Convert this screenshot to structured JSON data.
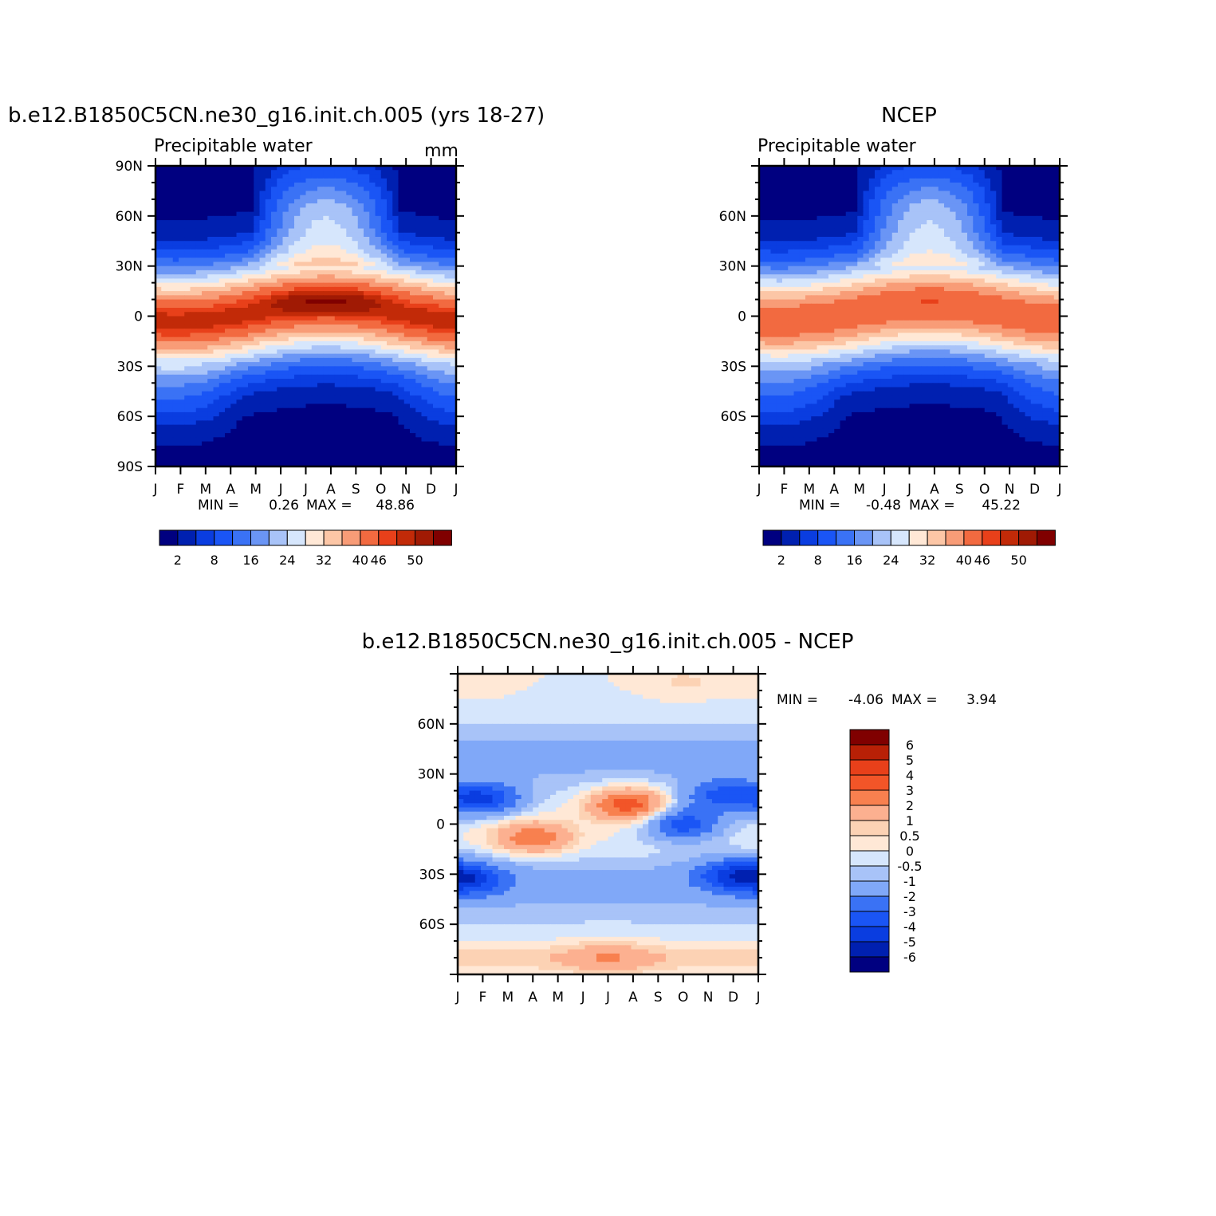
{
  "panels": [
    {
      "id": "model",
      "title": "b.e12.B1850C5CN.ne30_g16.init.ch.005 (yrs 18-27)",
      "left_string": "Precipitable water",
      "right_string": "mm",
      "stats": {
        "min_label": "MIN =",
        "min": "0.26",
        "max_label": "MAX =",
        "max": "48.86"
      },
      "y_labels": [
        "90N",
        "60N",
        "30N",
        "0",
        "30S",
        "60S",
        "90S"
      ],
      "colorbar_labels": [
        "2",
        "8",
        "16",
        "24",
        "32",
        "40",
        "46",
        "50"
      ]
    },
    {
      "id": "ncep",
      "title": "NCEP",
      "left_string": "Precipitable water",
      "right_string": "",
      "stats": {
        "min_label": "MIN =",
        "min": "-0.48",
        "max_label": "MAX =",
        "max": "45.22"
      },
      "y_labels": [
        "60N",
        "30N",
        "0",
        "30S",
        "60S"
      ],
      "colorbar_labels": [
        "2",
        "8",
        "16",
        "24",
        "32",
        "40",
        "46",
        "50"
      ]
    },
    {
      "id": "diff",
      "title": "b.e12.B1850C5CN.ne30_g16.init.ch.005 - NCEP",
      "stats": {
        "min_label": "MIN =",
        "min": "-4.06",
        "max_label": "MAX =",
        "max": "3.94"
      },
      "y_labels": [
        "60N",
        "30N",
        "0",
        "30S",
        "60S"
      ],
      "colorbar_labels": [
        "6",
        "5",
        "4",
        "3",
        "2",
        "1",
        "0.5",
        "0",
        "-0.5",
        "-1",
        "-2",
        "-3",
        "-4",
        "-5",
        "-6"
      ]
    }
  ],
  "chart_data": [
    {
      "type": "heatmap",
      "name": "model",
      "x": [
        "J",
        "F",
        "M",
        "A",
        "M",
        "J",
        "J",
        "A",
        "S",
        "O",
        "N",
        "D",
        "J"
      ],
      "ylim": [
        -90,
        90
      ],
      "levels": [
        2,
        5,
        8,
        12,
        16,
        20,
        24,
        28,
        32,
        36,
        40,
        44,
        46,
        48,
        50
      ],
      "colors": [
        "#000080",
        "#0020b0",
        "#0a3de0",
        "#1a55f5",
        "#3a72f5",
        "#6a95f5",
        "#a8c3f8",
        "#d6e6fc",
        "#ffe8d6",
        "#fcc6a6",
        "#f89c77",
        "#f26a40",
        "#e8401a",
        "#c22a08",
        "#a01a04",
        "#800000"
      ],
      "value_range": [
        0.26,
        48.86
      ],
      "itcz": {
        "amplitude_deg": 5.5,
        "peak_month": 6.8,
        "mean_lat": 2,
        "peak_value": 49,
        "jja_enhancement": 3.5
      }
    },
    {
      "type": "heatmap",
      "name": "ncep",
      "x": [
        "J",
        "F",
        "M",
        "A",
        "M",
        "J",
        "J",
        "A",
        "S",
        "O",
        "N",
        "D",
        "J"
      ],
      "ylim": [
        -90,
        90
      ],
      "levels": [
        2,
        5,
        8,
        12,
        16,
        20,
        24,
        28,
        32,
        36,
        40,
        44,
        46,
        48,
        50
      ],
      "colors": [
        "#000080",
        "#0020b0",
        "#0a3de0",
        "#1a55f5",
        "#3a72f5",
        "#6a95f5",
        "#a8c3f8",
        "#d6e6fc",
        "#ffe8d6",
        "#fcc6a6",
        "#f89c77",
        "#f26a40",
        "#e8401a",
        "#c22a08",
        "#a01a04",
        "#800000"
      ],
      "value_range": [
        -0.48,
        45.22
      ],
      "itcz": {
        "amplitude_deg": 5,
        "peak_month": 6.8,
        "mean_lat": 2,
        "peak_value": 45.2,
        "jja_enhancement": 1
      }
    },
    {
      "type": "heatmap",
      "name": "diff",
      "x": [
        "J",
        "F",
        "M",
        "A",
        "M",
        "J",
        "J",
        "A",
        "S",
        "O",
        "N",
        "D",
        "J"
      ],
      "ylim": [
        -90,
        90
      ],
      "levels": [
        -6,
        -5,
        -4,
        -3,
        -2,
        -1,
        -0.5,
        0,
        0.5,
        1,
        2,
        3,
        4,
        5,
        6
      ],
      "colors": [
        "#000080",
        "#0020b0",
        "#0a3de0",
        "#1a55f5",
        "#3a72f5",
        "#80a8f8",
        "#a8c3f8",
        "#d6e6fc",
        "#ffe8d6",
        "#fcd2b4",
        "#fcb090",
        "#f8804f",
        "#f25528",
        "#e8401a",
        "#b82006",
        "#800000"
      ],
      "value_range": [
        -4.06,
        3.94
      ],
      "features": [
        {
          "month": 1.0,
          "lat": 15,
          "value": -3.8
        },
        {
          "month": 3.0,
          "lat": -8,
          "value": 2.8
        },
        {
          "month": 6.8,
          "lat": 12,
          "value": 3.9
        },
        {
          "month": 9.0,
          "lat": 0,
          "value": -3.5
        },
        {
          "month": 10.5,
          "lat": 17,
          "value": -2.8
        },
        {
          "month": 11.0,
          "lat": -30,
          "value": -3.0
        },
        {
          "month": 0.5,
          "lat": -33,
          "value": -2.8
        },
        {
          "month": 6.0,
          "lat": -80,
          "value": 1.3
        },
        {
          "month": 0.5,
          "lat": 85,
          "value": 0.4
        },
        {
          "month": 9.0,
          "lat": 85,
          "value": 0.6
        }
      ]
    }
  ]
}
